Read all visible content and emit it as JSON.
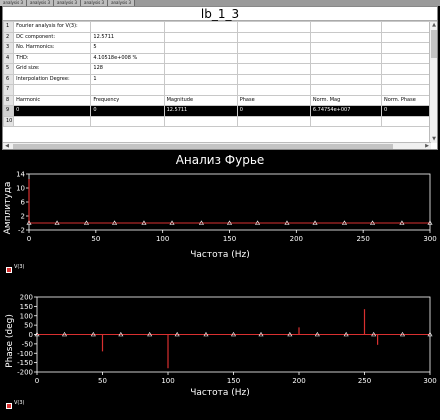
{
  "window": {
    "title": "lb_1_3",
    "tabs": [
      "analysis 3",
      "analysis 3",
      "analysis 3",
      "analysis 3",
      "analysis 3"
    ]
  },
  "grid": {
    "rows": [
      {
        "n": "1",
        "cells": [
          "Fourier analysis for V(3):",
          "",
          "",
          "",
          "",
          ""
        ]
      },
      {
        "n": "2",
        "cells": [
          "DC component:",
          "12.5711",
          "",
          "",
          "",
          ""
        ]
      },
      {
        "n": "3",
        "cells": [
          "No. Harmonics:",
          "5",
          "",
          "",
          "",
          ""
        ]
      },
      {
        "n": "4",
        "cells": [
          "THD:",
          "4.10518e+008 %",
          "",
          "",
          "",
          ""
        ]
      },
      {
        "n": "5",
        "cells": [
          "Grid size:",
          "128",
          "",
          "",
          "",
          ""
        ]
      },
      {
        "n": "6",
        "cells": [
          "Interpolation Degree:",
          "1",
          "",
          "",
          "",
          ""
        ]
      },
      {
        "n": "7",
        "cells": [
          "",
          "",
          "",
          "",
          "",
          ""
        ]
      },
      {
        "n": "8",
        "cells": [
          "Harmonic",
          "Frequency",
          "Magnitude",
          "Phase",
          "Norm. Mag",
          "Norm. Phase"
        ]
      },
      {
        "n": "9",
        "cells": [
          "0",
          "0",
          "12.5711",
          "0",
          "6.74754e+007",
          "0"
        ],
        "selected": true
      },
      {
        "n": "10",
        "cells": [
          "",
          "",
          "",
          "",
          "",
          ""
        ]
      }
    ]
  },
  "plot": {
    "title": "Анализ Фурье",
    "legend_label": "V(3)"
  },
  "chart_data": [
    {
      "type": "bar",
      "ylabel": "Амплитуда",
      "xlabel": "Частота (Hz)",
      "xlim": [
        0,
        300
      ],
      "ylim": [
        -2,
        14
      ],
      "xticks": [
        0,
        50,
        100,
        150,
        200,
        250,
        300
      ],
      "yticks": [
        -2,
        2,
        6,
        10,
        14
      ],
      "marker_x": [
        0,
        21,
        43,
        64,
        86,
        107,
        129,
        150,
        171,
        193,
        214,
        236,
        257,
        279,
        300
      ],
      "stems": [
        {
          "x": 0,
          "y": 12.57
        }
      ],
      "series_color": "#d93030"
    },
    {
      "type": "bar",
      "ylabel": "Phase (deg)",
      "xlabel": "Частота (Hz)",
      "xlim": [
        0,
        300
      ],
      "ylim": [
        -200,
        200
      ],
      "xticks": [
        0,
        50,
        100,
        150,
        200,
        250,
        300
      ],
      "yticks": [
        -200,
        -150,
        -100,
        -50,
        0,
        50,
        100,
        150,
        200
      ],
      "marker_x": [
        0,
        21,
        43,
        64,
        86,
        107,
        129,
        150,
        171,
        193,
        214,
        236,
        257,
        279,
        300
      ],
      "stems": [
        {
          "x": 50,
          "y": -90
        },
        {
          "x": 100,
          "y": -180
        },
        {
          "x": 200,
          "y": 38
        },
        {
          "x": 250,
          "y": 135
        },
        {
          "x": 260,
          "y": -55
        }
      ],
      "series_color": "#d93030"
    }
  ]
}
